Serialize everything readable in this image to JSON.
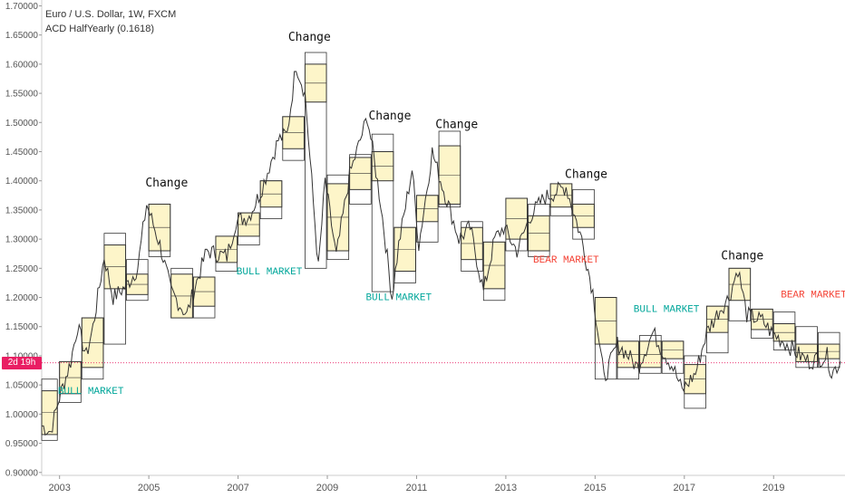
{
  "legend": {
    "symbol": "Euro / U.S. Dollar, 1W, FXCM",
    "indicator": "ACD HalfYearly (0.1618)"
  },
  "price_label": {
    "text": "2d 19h",
    "value": 1.088,
    "color": "#e91e63"
  },
  "colors": {
    "price_line": "#333333",
    "box_fill": "#fdf5c9",
    "box_stroke": "#333333",
    "bull": "#00a69a",
    "bear": "#f44336",
    "change": "#111111",
    "axis_text": "#555555",
    "ref_line": "#e91e63"
  },
  "chart_data": {
    "type": "line",
    "title": "Euro / U.S. Dollar, 1W, FXCM",
    "xlabel": "",
    "ylabel": "",
    "xlim": [
      2002.6,
      2020.6
    ],
    "ylim": [
      0.895,
      1.71
    ],
    "yticks": [
      0.9,
      0.95,
      1.0,
      1.05,
      1.1,
      1.15,
      1.2,
      1.25,
      1.3,
      1.35,
      1.4,
      1.45,
      1.5,
      1.55,
      1.6,
      1.65,
      1.7
    ],
    "ytick_labels": [
      "0.90000",
      "0.95000",
      "1.00000",
      "1.05000",
      "1.10000",
      "1.15000",
      "1.20000",
      "1.25000",
      "1.30000",
      "1.35000",
      "1.40000",
      "1.45000",
      "1.50000",
      "1.55000",
      "1.60000",
      "1.65000",
      "1.70000"
    ],
    "xticks": [
      2003,
      2005,
      2007,
      2009,
      2011,
      2013,
      2015,
      2017,
      2019
    ],
    "xtick_labels": [
      "2003",
      "2005",
      "2007",
      "2009",
      "2011",
      "2013",
      "2015",
      "2017",
      "2019"
    ],
    "series": [
      {
        "points": [
          [
            2002.6,
            0.98
          ],
          [
            2002.8,
            0.97
          ],
          [
            2003.0,
            1.03
          ],
          [
            2003.25,
            1.09
          ],
          [
            2003.4,
            1.15
          ],
          [
            2003.6,
            1.1
          ],
          [
            2003.75,
            1.15
          ],
          [
            2004.0,
            1.27
          ],
          [
            2004.2,
            1.2
          ],
          [
            2004.5,
            1.22
          ],
          [
            2004.75,
            1.25
          ],
          [
            2004.95,
            1.36
          ],
          [
            2005.25,
            1.29
          ],
          [
            2005.5,
            1.21
          ],
          [
            2005.85,
            1.17
          ],
          [
            2006.0,
            1.21
          ],
          [
            2006.3,
            1.28
          ],
          [
            2006.75,
            1.27
          ],
          [
            2006.95,
            1.33
          ],
          [
            2007.25,
            1.34
          ],
          [
            2007.5,
            1.38
          ],
          [
            2007.9,
            1.47
          ],
          [
            2008.1,
            1.48
          ],
          [
            2008.3,
            1.6
          ],
          [
            2008.5,
            1.55
          ],
          [
            2008.8,
            1.25
          ],
          [
            2008.95,
            1.4
          ],
          [
            2009.2,
            1.27
          ],
          [
            2009.5,
            1.41
          ],
          [
            2009.9,
            1.51
          ],
          [
            2010.2,
            1.36
          ],
          [
            2010.45,
            1.2
          ],
          [
            2010.6,
            1.29
          ],
          [
            2010.9,
            1.42
          ],
          [
            2011.05,
            1.29
          ],
          [
            2011.35,
            1.45
          ],
          [
            2011.5,
            1.41
          ],
          [
            2011.75,
            1.35
          ],
          [
            2011.95,
            1.3
          ],
          [
            2012.2,
            1.32
          ],
          [
            2012.5,
            1.21
          ],
          [
            2012.75,
            1.3
          ],
          [
            2012.95,
            1.32
          ],
          [
            2013.25,
            1.28
          ],
          [
            2013.55,
            1.34
          ],
          [
            2013.85,
            1.37
          ],
          [
            2014.1,
            1.38
          ],
          [
            2014.35,
            1.39
          ],
          [
            2014.7,
            1.3
          ],
          [
            2014.95,
            1.21
          ],
          [
            2015.2,
            1.06
          ],
          [
            2015.5,
            1.12
          ],
          [
            2015.75,
            1.1
          ],
          [
            2015.95,
            1.08
          ],
          [
            2016.3,
            1.14
          ],
          [
            2016.5,
            1.11
          ],
          [
            2016.75,
            1.08
          ],
          [
            2016.95,
            1.04
          ],
          [
            2017.25,
            1.07
          ],
          [
            2017.5,
            1.14
          ],
          [
            2017.8,
            1.18
          ],
          [
            2018.0,
            1.2
          ],
          [
            2018.2,
            1.25
          ],
          [
            2018.4,
            1.17
          ],
          [
            2018.75,
            1.16
          ],
          [
            2018.95,
            1.14
          ],
          [
            2019.3,
            1.12
          ],
          [
            2019.6,
            1.1
          ],
          [
            2019.8,
            1.09
          ],
          [
            2020.2,
            1.1
          ],
          [
            2020.3,
            1.07
          ],
          [
            2020.5,
            1.09
          ]
        ]
      }
    ],
    "acd_boxes": [
      {
        "x0": 2002.6,
        "x1": 2002.95,
        "y_top": 1.04,
        "y_bottom": 0.965,
        "outer_top": 1.06,
        "outer_bottom": 0.955
      },
      {
        "x0": 2003.0,
        "x1": 2003.48,
        "y_top": 1.09,
        "y_bottom": 1.035,
        "outer_top": 1.09,
        "outer_bottom": 1.02
      },
      {
        "x0": 2003.5,
        "x1": 2003.98,
        "y_top": 1.165,
        "y_bottom": 1.08,
        "outer_top": 1.165,
        "outer_bottom": 1.06
      },
      {
        "x0": 2004.0,
        "x1": 2004.48,
        "y_top": 1.29,
        "y_bottom": 1.215,
        "outer_top": 1.31,
        "outer_bottom": 1.12
      },
      {
        "x0": 2004.5,
        "x1": 2004.98,
        "y_top": 1.24,
        "y_bottom": 1.205,
        "outer_top": 1.265,
        "outer_bottom": 1.195
      },
      {
        "x0": 2005.0,
        "x1": 2005.48,
        "y_top": 1.36,
        "y_bottom": 1.28,
        "outer_top": 1.36,
        "outer_bottom": 1.27
      },
      {
        "x0": 2005.5,
        "x1": 2005.98,
        "y_top": 1.24,
        "y_bottom": 1.165,
        "outer_top": 1.25,
        "outer_bottom": 1.165
      },
      {
        "x0": 2006.0,
        "x1": 2006.48,
        "y_top": 1.235,
        "y_bottom": 1.185,
        "outer_top": 1.235,
        "outer_bottom": 1.165
      },
      {
        "x0": 2006.5,
        "x1": 2006.98,
        "y_top": 1.305,
        "y_bottom": 1.26,
        "outer_top": 1.305,
        "outer_bottom": 1.245
      },
      {
        "x0": 2007.0,
        "x1": 2007.48,
        "y_top": 1.345,
        "y_bottom": 1.305,
        "outer_top": 1.345,
        "outer_bottom": 1.29
      },
      {
        "x0": 2007.5,
        "x1": 2007.98,
        "y_top": 1.4,
        "y_bottom": 1.355,
        "outer_top": 1.4,
        "outer_bottom": 1.335
      },
      {
        "x0": 2008.0,
        "x1": 2008.48,
        "y_top": 1.51,
        "y_bottom": 1.455,
        "outer_top": 1.51,
        "outer_bottom": 1.435
      },
      {
        "x0": 2008.5,
        "x1": 2008.98,
        "y_top": 1.6,
        "y_bottom": 1.535,
        "outer_top": 1.62,
        "outer_bottom": 1.25
      },
      {
        "x0": 2009.0,
        "x1": 2009.48,
        "y_top": 1.395,
        "y_bottom": 1.28,
        "outer_top": 1.41,
        "outer_bottom": 1.265
      },
      {
        "x0": 2009.5,
        "x1": 2009.98,
        "y_top": 1.44,
        "y_bottom": 1.385,
        "outer_top": 1.445,
        "outer_bottom": 1.36
      },
      {
        "x0": 2010.0,
        "x1": 2010.48,
        "y_top": 1.45,
        "y_bottom": 1.4,
        "outer_top": 1.48,
        "outer_bottom": 1.21
      },
      {
        "x0": 2010.5,
        "x1": 2010.98,
        "y_top": 1.32,
        "y_bottom": 1.245,
        "outer_top": 1.32,
        "outer_bottom": 1.225
      },
      {
        "x0": 2011.0,
        "x1": 2011.48,
        "y_top": 1.375,
        "y_bottom": 1.33,
        "outer_top": 1.375,
        "outer_bottom": 1.295
      },
      {
        "x0": 2011.5,
        "x1": 2011.98,
        "y_top": 1.46,
        "y_bottom": 1.36,
        "outer_top": 1.485,
        "outer_bottom": 1.355
      },
      {
        "x0": 2012.0,
        "x1": 2012.48,
        "y_top": 1.32,
        "y_bottom": 1.265,
        "outer_top": 1.33,
        "outer_bottom": 1.245
      },
      {
        "x0": 2012.5,
        "x1": 2012.98,
        "y_top": 1.295,
        "y_bottom": 1.215,
        "outer_top": 1.295,
        "outer_bottom": 1.195
      },
      {
        "x0": 2013.0,
        "x1": 2013.48,
        "y_top": 1.37,
        "y_bottom": 1.3,
        "outer_top": 1.37,
        "outer_bottom": 1.28
      },
      {
        "x0": 2013.5,
        "x1": 2013.98,
        "y_top": 1.34,
        "y_bottom": 1.28,
        "outer_top": 1.36,
        "outer_bottom": 1.27
      },
      {
        "x0": 2014.0,
        "x1": 2014.48,
        "y_top": 1.395,
        "y_bottom": 1.355,
        "outer_top": 1.395,
        "outer_bottom": 1.34
      },
      {
        "x0": 2014.5,
        "x1": 2014.98,
        "y_top": 1.36,
        "y_bottom": 1.32,
        "outer_top": 1.385,
        "outer_bottom": 1.3
      },
      {
        "x0": 2015.0,
        "x1": 2015.48,
        "y_top": 1.2,
        "y_bottom": 1.12,
        "outer_top": 1.2,
        "outer_bottom": 1.06
      },
      {
        "x0": 2015.5,
        "x1": 2015.98,
        "y_top": 1.125,
        "y_bottom": 1.08,
        "outer_top": 1.125,
        "outer_bottom": 1.06
      },
      {
        "x0": 2016.0,
        "x1": 2016.48,
        "y_top": 1.125,
        "y_bottom": 1.08,
        "outer_top": 1.135,
        "outer_bottom": 1.07
      },
      {
        "x0": 2016.5,
        "x1": 2016.98,
        "y_top": 1.125,
        "y_bottom": 1.095,
        "outer_top": 1.125,
        "outer_bottom": 1.07
      },
      {
        "x0": 2017.0,
        "x1": 2017.48,
        "y_top": 1.085,
        "y_bottom": 1.035,
        "outer_top": 1.1,
        "outer_bottom": 1.01
      },
      {
        "x0": 2017.5,
        "x1": 2017.98,
        "y_top": 1.185,
        "y_bottom": 1.14,
        "outer_top": 1.185,
        "outer_bottom": 1.105
      },
      {
        "x0": 2018.0,
        "x1": 2018.48,
        "y_top": 1.25,
        "y_bottom": 1.195,
        "outer_top": 1.25,
        "outer_bottom": 1.16
      },
      {
        "x0": 2018.5,
        "x1": 2018.98,
        "y_top": 1.18,
        "y_bottom": 1.145,
        "outer_top": 1.18,
        "outer_bottom": 1.13
      },
      {
        "x0": 2019.0,
        "x1": 2019.48,
        "y_top": 1.155,
        "y_bottom": 1.125,
        "outer_top": 1.175,
        "outer_bottom": 1.11
      },
      {
        "x0": 2019.5,
        "x1": 2019.98,
        "y_top": 1.12,
        "y_bottom": 1.09,
        "outer_top": 1.15,
        "outer_bottom": 1.08
      },
      {
        "x0": 2020.0,
        "x1": 2020.48,
        "y_top": 1.12,
        "y_bottom": 1.095,
        "outer_top": 1.14,
        "outer_bottom": 1.08
      }
    ],
    "annotations": [
      {
        "text": "Change",
        "x": 2005.4,
        "y": 1.39,
        "kind": "change"
      },
      {
        "text": "Change",
        "x": 2008.6,
        "y": 1.64,
        "kind": "change"
      },
      {
        "text": "Change",
        "x": 2010.4,
        "y": 1.505,
        "kind": "change"
      },
      {
        "text": "Change",
        "x": 2011.9,
        "y": 1.49,
        "kind": "change"
      },
      {
        "text": "Change",
        "x": 2014.8,
        "y": 1.405,
        "kind": "change"
      },
      {
        "text": "Change",
        "x": 2018.3,
        "y": 1.265,
        "kind": "change"
      },
      {
        "text": "BULL MARKET",
        "x": 2003.7,
        "y": 1.035,
        "kind": "bull"
      },
      {
        "text": "BULL MARKET",
        "x": 2007.7,
        "y": 1.24,
        "kind": "bull"
      },
      {
        "text": "BULL MARKET",
        "x": 2010.6,
        "y": 1.195,
        "kind": "bull"
      },
      {
        "text": "BULL MARKET",
        "x": 2016.6,
        "y": 1.175,
        "kind": "bull"
      },
      {
        "text": "BEAR MARKET",
        "x": 2014.35,
        "y": 1.26,
        "kind": "bear"
      },
      {
        "text": "BEAR MARKET",
        "x": 2019.9,
        "y": 1.2,
        "kind": "bear"
      }
    ],
    "reference_line": {
      "y": 1.088
    }
  }
}
